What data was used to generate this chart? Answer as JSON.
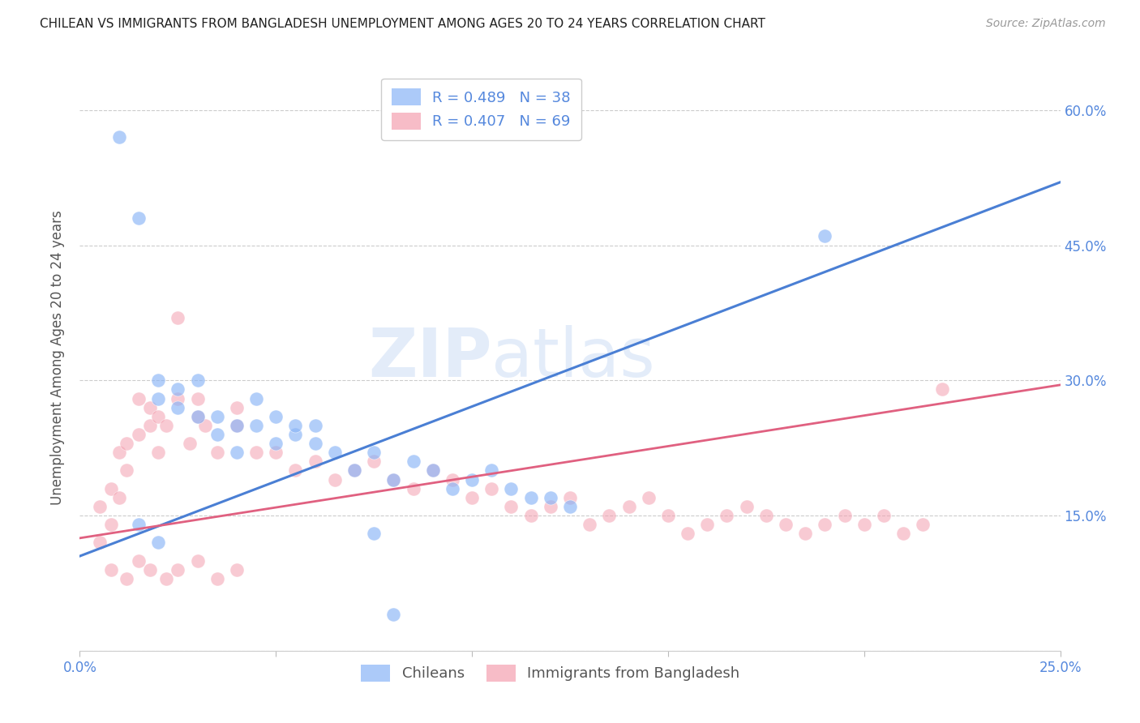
{
  "title": "CHILEAN VS IMMIGRANTS FROM BANGLADESH UNEMPLOYMENT AMONG AGES 20 TO 24 YEARS CORRELATION CHART",
  "source": "Source: ZipAtlas.com",
  "ylabel": "Unemployment Among Ages 20 to 24 years",
  "xlim": [
    0.0,
    0.25
  ],
  "ylim": [
    0.0,
    0.65
  ],
  "xticks": [
    0.0,
    0.05,
    0.1,
    0.15,
    0.2,
    0.25
  ],
  "xtick_labels": [
    "0.0%",
    "",
    "",
    "",
    "",
    "25.0%"
  ],
  "yticks_right": [
    0.0,
    0.15,
    0.3,
    0.45,
    0.6
  ],
  "ytick_labels_right": [
    "",
    "15.0%",
    "30.0%",
    "45.0%",
    "60.0%"
  ],
  "grid_color": "#cccccc",
  "background_color": "#ffffff",
  "watermark_line1": "ZIP",
  "watermark_line2": "atlas",
  "legend_R1": "R = 0.489",
  "legend_N1": "N = 38",
  "legend_R2": "R = 0.407",
  "legend_N2": "N = 69",
  "blue_color": "#89b4f7",
  "pink_color": "#f4a0b0",
  "blue_line_color": "#4a7fd4",
  "pink_line_color": "#e06080",
  "title_color": "#333333",
  "axis_label_color": "#555555",
  "tick_label_color": "#5588dd",
  "chilean_scatter_x": [
    0.01,
    0.015,
    0.02,
    0.02,
    0.025,
    0.025,
    0.03,
    0.03,
    0.035,
    0.035,
    0.04,
    0.04,
    0.045,
    0.045,
    0.05,
    0.05,
    0.055,
    0.06,
    0.06,
    0.065,
    0.07,
    0.075,
    0.08,
    0.085,
    0.09,
    0.095,
    0.1,
    0.105,
    0.11,
    0.115,
    0.12,
    0.125,
    0.055,
    0.19,
    0.075,
    0.08,
    0.015,
    0.02
  ],
  "chilean_scatter_y": [
    0.57,
    0.48,
    0.28,
    0.3,
    0.27,
    0.29,
    0.26,
    0.3,
    0.24,
    0.26,
    0.22,
    0.25,
    0.25,
    0.28,
    0.23,
    0.26,
    0.24,
    0.23,
    0.25,
    0.22,
    0.2,
    0.22,
    0.19,
    0.21,
    0.2,
    0.18,
    0.19,
    0.2,
    0.18,
    0.17,
    0.17,
    0.16,
    0.25,
    0.46,
    0.13,
    0.04,
    0.14,
    0.12
  ],
  "bangladesh_scatter_x": [
    0.005,
    0.005,
    0.008,
    0.008,
    0.01,
    0.01,
    0.012,
    0.012,
    0.015,
    0.015,
    0.018,
    0.018,
    0.02,
    0.02,
    0.022,
    0.025,
    0.025,
    0.028,
    0.03,
    0.03,
    0.032,
    0.035,
    0.04,
    0.04,
    0.045,
    0.05,
    0.055,
    0.06,
    0.065,
    0.07,
    0.075,
    0.08,
    0.085,
    0.09,
    0.095,
    0.1,
    0.105,
    0.11,
    0.115,
    0.12,
    0.125,
    0.13,
    0.135,
    0.14,
    0.145,
    0.15,
    0.155,
    0.16,
    0.165,
    0.17,
    0.175,
    0.18,
    0.185,
    0.19,
    0.195,
    0.2,
    0.205,
    0.21,
    0.215,
    0.22,
    0.008,
    0.012,
    0.015,
    0.018,
    0.022,
    0.025,
    0.03,
    0.035,
    0.04
  ],
  "bangladesh_scatter_y": [
    0.16,
    0.12,
    0.18,
    0.14,
    0.22,
    0.17,
    0.2,
    0.23,
    0.28,
    0.24,
    0.25,
    0.27,
    0.22,
    0.26,
    0.25,
    0.28,
    0.37,
    0.23,
    0.26,
    0.28,
    0.25,
    0.22,
    0.25,
    0.27,
    0.22,
    0.22,
    0.2,
    0.21,
    0.19,
    0.2,
    0.21,
    0.19,
    0.18,
    0.2,
    0.19,
    0.17,
    0.18,
    0.16,
    0.15,
    0.16,
    0.17,
    0.14,
    0.15,
    0.16,
    0.17,
    0.15,
    0.13,
    0.14,
    0.15,
    0.16,
    0.15,
    0.14,
    0.13,
    0.14,
    0.15,
    0.14,
    0.15,
    0.13,
    0.14,
    0.29,
    0.09,
    0.08,
    0.1,
    0.09,
    0.08,
    0.09,
    0.1,
    0.08,
    0.09
  ],
  "blue_trendline_x": [
    0.0,
    0.25
  ],
  "blue_trendline_y": [
    0.105,
    0.52
  ],
  "pink_trendline_y": [
    0.125,
    0.295
  ]
}
